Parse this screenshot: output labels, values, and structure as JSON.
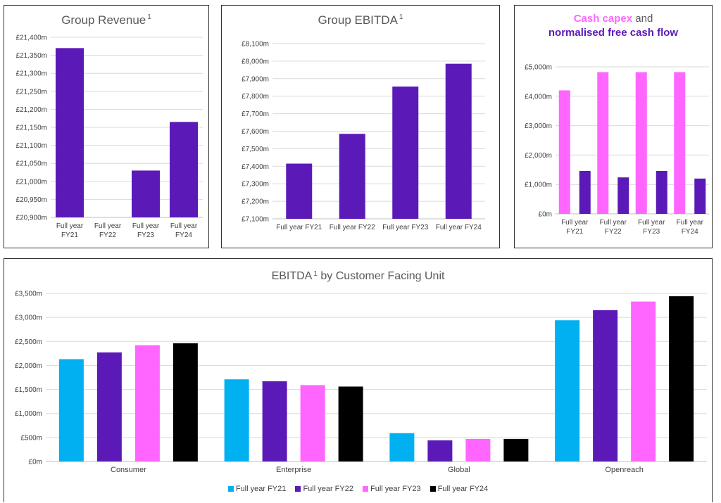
{
  "colors": {
    "purple": "#5b1ab8",
    "cyan": "#00b0f0",
    "pink": "#ff66ff",
    "black": "#000000",
    "grid": "#d9d9d9",
    "axis": "#404040"
  },
  "revenue": {
    "title": "Group Revenue",
    "footnote": "1"
  },
  "ebitda": {
    "title": "Group EBITDA",
    "footnote": "1"
  },
  "capex": {
    "title_part1": "Cash capex",
    "title_part2": " and",
    "title_part3": "normalised free cash flow"
  },
  "cfu": {
    "title": "EBITDA",
    "footnote": "1",
    "title_rest": "by Customer Facing Unit",
    "legend": [
      "Full year FY21",
      "Full year FY22",
      "Full year FY23",
      "Full year FY24"
    ]
  },
  "chart_data": [
    {
      "id": "revenue",
      "type": "bar",
      "title": "Group Revenue",
      "categories": [
        [
          "Full year",
          "FY21"
        ],
        [
          "Full year",
          "FY22"
        ],
        [
          "Full year",
          "FY23"
        ],
        [
          "Full year",
          "FY24"
        ]
      ],
      "values": [
        21370,
        20880,
        21030,
        21165
      ],
      "ylim": [
        20900,
        21400
      ],
      "yticks": [
        20900,
        20950,
        21000,
        21050,
        21100,
        21150,
        21200,
        21250,
        21300,
        21350,
        21400
      ],
      "ytick_labels": [
        "£20,900m",
        "£20,950m",
        "£21,000m",
        "£21,050m",
        "£21,100m",
        "£21,150m",
        "£21,200m",
        "£21,250m",
        "£21,300m",
        "£21,350m",
        "£21,400m"
      ],
      "grid": true
    },
    {
      "id": "ebitda",
      "type": "bar",
      "title": "Group EBITDA",
      "categories": [
        [
          "Full year FY21"
        ],
        [
          "Full year FY22"
        ],
        [
          "Full year FY23"
        ],
        [
          "Full year FY24"
        ]
      ],
      "values": [
        7415,
        7585,
        7855,
        7985
      ],
      "ylim": [
        7100,
        8100
      ],
      "yticks": [
        7100,
        7200,
        7300,
        7400,
        7500,
        7600,
        7700,
        7800,
        7900,
        8000,
        8100
      ],
      "ytick_labels": [
        "£7,100m",
        "£7,200m",
        "£7,300m",
        "£7,400m",
        "£7,500m",
        "£7,600m",
        "£7,700m",
        "£7,800m",
        "£7,900m",
        "£8,000m",
        "£8,100m"
      ],
      "grid": true
    },
    {
      "id": "capex",
      "type": "bar",
      "title": "Cash capex and normalised free cash flow",
      "categories": [
        [
          "Full year",
          "FY21"
        ],
        [
          "Full year",
          "FY22"
        ],
        [
          "Full year",
          "FY23"
        ],
        [
          "Full year",
          "FY24"
        ]
      ],
      "series": [
        {
          "name": "Cash capex",
          "values": [
            4200,
            4820,
            4820,
            4820
          ]
        },
        {
          "name": "normalised free cash flow",
          "values": [
            1460,
            1240,
            1460,
            1200
          ]
        }
      ],
      "ylim": [
        0,
        5000
      ],
      "yticks": [
        0,
        1000,
        2000,
        3000,
        4000,
        5000
      ],
      "ytick_labels": [
        "£0m",
        "£1,000m",
        "£2,000m",
        "£3,000m",
        "£4,000m",
        "£5,000m"
      ],
      "grid": true
    },
    {
      "id": "cfu",
      "type": "bar",
      "title": "EBITDA by Customer Facing Unit",
      "categories": [
        "Consumer",
        "Enterprise",
        "Global",
        "Openreach"
      ],
      "series": [
        {
          "name": "Full year FY21",
          "values": [
            2130,
            1710,
            590,
            2940
          ]
        },
        {
          "name": "Full year FY22",
          "values": [
            2270,
            1670,
            440,
            3150
          ]
        },
        {
          "name": "Full year FY23",
          "values": [
            2420,
            1590,
            470,
            3330
          ]
        },
        {
          "name": "Full year FY24",
          "values": [
            2460,
            1560,
            470,
            3440
          ]
        }
      ],
      "ylim": [
        0,
        3500
      ],
      "yticks": [
        0,
        500,
        1000,
        1500,
        2000,
        2500,
        3000,
        3500
      ],
      "ytick_labels": [
        "£0m",
        "£500m",
        "£1,000m",
        "£1,500m",
        "£2,000m",
        "£2,500m",
        "£3,000m",
        "£3,500m"
      ],
      "legend_position": "bottom",
      "grid": true
    }
  ]
}
